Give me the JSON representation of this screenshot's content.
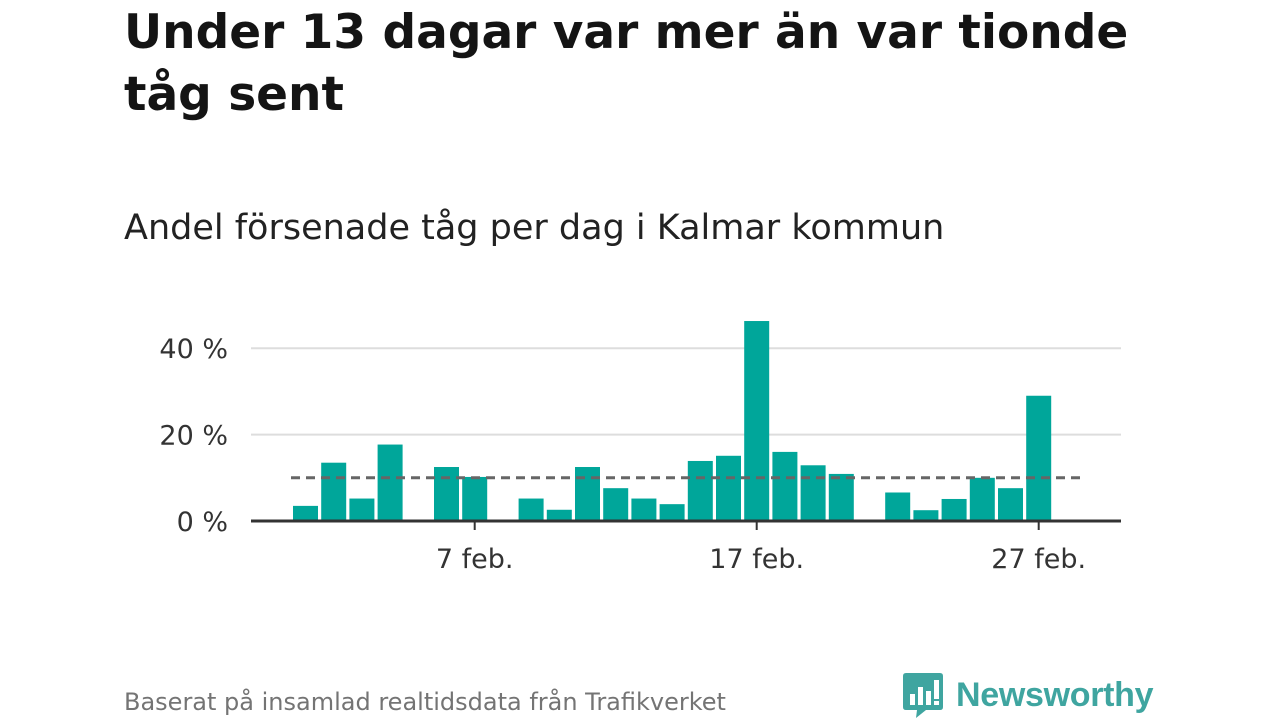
{
  "title": "Under 13 dagar var mer än var tionde tåg sent",
  "subtitle": "Andel försenade tåg per dag i Kalmar kommun",
  "source": "Baserat på insamlad realtidsdata från Trafikverket",
  "logo": {
    "text": "Newsworthy",
    "icon": "newsworthy-logo-icon",
    "color": "#3fa5a0"
  },
  "colors": {
    "bar": "#00a69a",
    "reference_line": "#666666",
    "grid": "#dddddd",
    "axis": "#333333"
  },
  "chart_data": {
    "type": "bar",
    "x_dates": [
      "2024-02-01",
      "2024-02-02",
      "2024-02-03",
      "2024-02-04",
      "2024-02-05",
      "2024-02-06",
      "2024-02-07",
      "2024-02-08",
      "2024-02-09",
      "2024-02-10",
      "2024-02-11",
      "2024-02-12",
      "2024-02-13",
      "2024-02-14",
      "2024-02-15",
      "2024-02-16",
      "2024-02-17",
      "2024-02-18",
      "2024-02-19",
      "2024-02-20",
      "2024-02-21",
      "2024-02-22",
      "2024-02-23",
      "2024-02-24",
      "2024-02-25",
      "2024-02-26",
      "2024-02-27",
      "2024-02-28",
      "2024-02-29"
    ],
    "values": [
      3.5,
      13.5,
      5.2,
      17.7,
      null,
      12.5,
      10.2,
      0,
      5.2,
      2.6,
      12.5,
      7.6,
      5.2,
      3.9,
      13.9,
      15.1,
      46.3,
      16.0,
      12.9,
      10.9,
      null,
      6.6,
      2.5,
      5.1,
      10.0,
      7.6,
      29.0,
      null,
      null
    ],
    "reference_line": 10,
    "ylim": [
      0,
      47
    ],
    "y_ticks": [
      {
        "value": 0,
        "label": "0 %"
      },
      {
        "value": 20,
        "label": "20 %"
      },
      {
        "value": 40,
        "label": "40 %"
      }
    ],
    "x_ticks": [
      {
        "index": 6,
        "label": "7 feb."
      },
      {
        "index": 16,
        "label": "17 feb."
      },
      {
        "index": 26,
        "label": "27 feb."
      }
    ],
    "grid": true,
    "legend": "none",
    "xlabel": "",
    "ylabel": ""
  }
}
